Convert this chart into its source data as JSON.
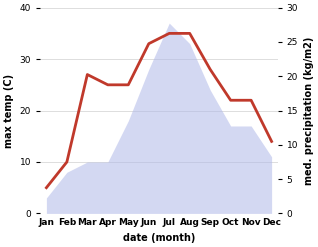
{
  "months": [
    "Jan",
    "Feb",
    "Mar",
    "Apr",
    "May",
    "Jun",
    "Jul",
    "Aug",
    "Sep",
    "Oct",
    "Nov",
    "Dec"
  ],
  "max_temp": [
    5,
    10,
    27,
    25,
    25,
    33,
    35,
    35,
    28,
    22,
    22,
    14
  ],
  "precipitation_left_scale": [
    3,
    8,
    10,
    10,
    18,
    28,
    37,
    33,
    24,
    17,
    17,
    11
  ],
  "temp_color": "#c0392b",
  "precip_fill_color": "#b0b8e8",
  "precip_fill_alpha": 0.55,
  "xlabel": "date (month)",
  "ylabel_left": "max temp (C)",
  "ylabel_right": "med. precipitation (kg/m2)",
  "ylim_left": [
    0,
    40
  ],
  "ylim_right": [
    0,
    30
  ],
  "yticks_left": [
    0,
    10,
    20,
    30,
    40
  ],
  "yticks_right": [
    0,
    5,
    10,
    15,
    20,
    25,
    30
  ],
  "line_width": 2.0,
  "label_fontsize": 7,
  "tick_fontsize": 6.5
}
